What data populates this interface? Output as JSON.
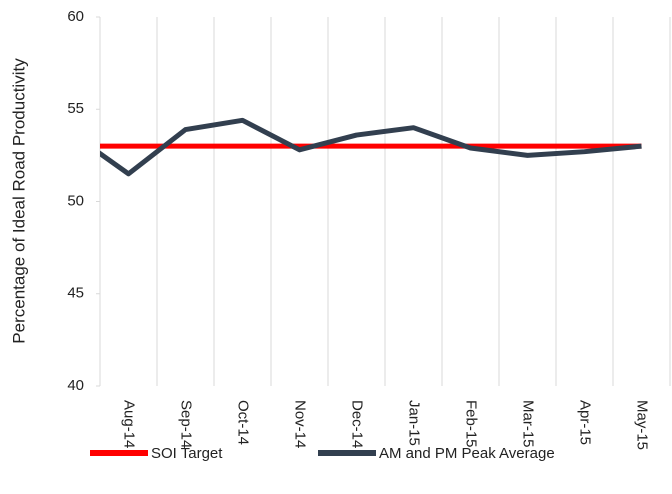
{
  "chart_data": {
    "type": "line",
    "y_label": "Percentage of Ideal Road Productivity",
    "categories": [
      null,
      "Aug-14",
      "Sep-14",
      "Oct-14",
      "Nov-14",
      "Dec-14",
      "Jan-15",
      "Feb-15",
      "Mar-15",
      "Apr-15",
      "May-15"
    ],
    "series": [
      {
        "name": "SOI Target",
        "color": "#ff0000",
        "values": [
          53,
          53,
          53,
          53,
          53,
          53,
          53,
          53,
          53,
          53,
          53
        ]
      },
      {
        "name": "AM and PM Peak Average",
        "color": "#323f4f",
        "values": [
          53.7,
          51.5,
          53.9,
          54.4,
          52.8,
          53.6,
          54.0,
          52.9,
          52.5,
          52.7,
          53.0
        ]
      }
    ],
    "ylim": [
      40,
      60
    ],
    "yticks": [
      40,
      45,
      50,
      55,
      60
    ],
    "legend": "bottom"
  }
}
